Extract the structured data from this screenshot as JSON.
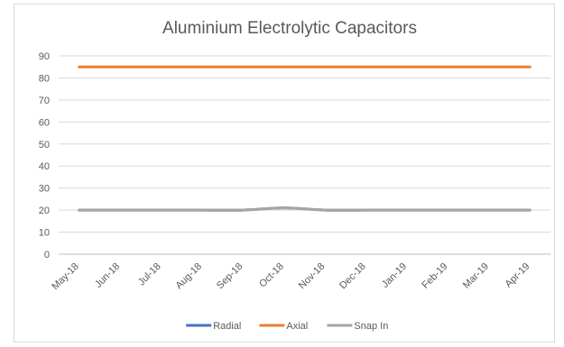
{
  "chart_data": {
    "type": "line",
    "title": "Aluminium Electrolytic Capacitors",
    "xlabel": "",
    "ylabel": "",
    "categories": [
      "May-18",
      "Jun-18",
      "Jul-18",
      "Aug-18",
      "Sep-18",
      "Oct-18",
      "Nov-18",
      "Dec-18",
      "Jan-19",
      "Feb-19",
      "Mar-19",
      "Apr-19"
    ],
    "ylim": [
      0,
      90
    ],
    "yticks": [
      0,
      10,
      20,
      30,
      40,
      50,
      60,
      70,
      80,
      90
    ],
    "grid": true,
    "legend_position": "bottom",
    "series": [
      {
        "name": "Radial",
        "color": "#4472c4",
        "values": [
          20,
          20,
          20,
          20,
          20,
          21,
          20,
          20,
          20,
          20,
          20,
          20
        ]
      },
      {
        "name": "Axial",
        "color": "#ed7d31",
        "values": [
          85,
          85,
          85,
          85,
          85,
          85,
          85,
          85,
          85,
          85,
          85,
          85
        ]
      },
      {
        "name": "Snap In",
        "color": "#a5a5a5",
        "values": [
          20,
          20,
          20,
          20,
          20,
          21,
          20,
          20,
          20,
          20,
          20,
          20
        ]
      }
    ]
  }
}
